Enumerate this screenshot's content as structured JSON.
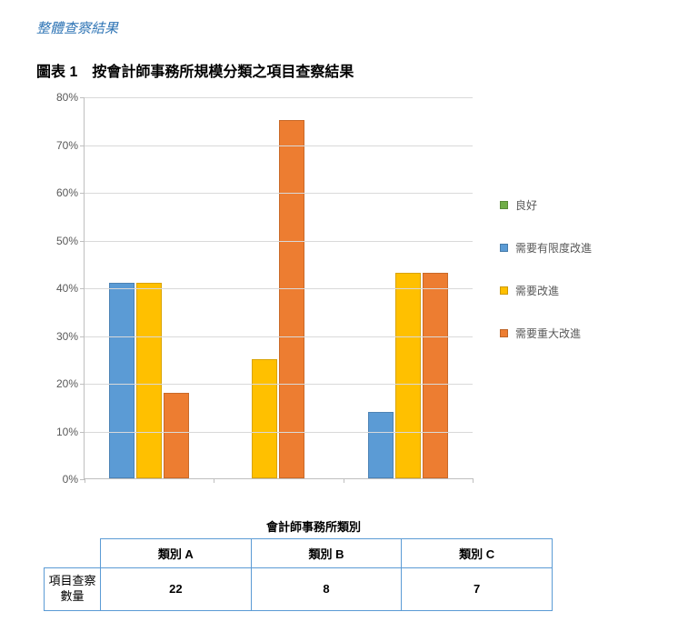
{
  "section_title": "整體查察結果",
  "chart_title": "圖表 1　按會計師事務所規模分類之項目查察結果",
  "chart": {
    "type": "bar",
    "ylim": [
      0,
      80
    ],
    "ytick_step": 10,
    "ytick_format_suffix": "%",
    "grid_color": "#d9d9d9",
    "axis_color": "#bfbfbf",
    "background_color": "#ffffff",
    "label_color": "#595959",
    "label_fontsize": 12,
    "categories": [
      "類別 A",
      "類別 B",
      "類別 C"
    ],
    "series": [
      {
        "name": "良好",
        "color": "#70ad47",
        "values": [
          0,
          0,
          0
        ]
      },
      {
        "name": "需要有限度改進",
        "color": "#5b9bd5",
        "values": [
          41,
          0,
          14
        ]
      },
      {
        "name": "需要改進",
        "color": "#ffc000",
        "values": [
          41,
          25,
          43
        ]
      },
      {
        "name": "需要重大改進",
        "color": "#ed7d31",
        "values": [
          18,
          75,
          43
        ]
      }
    ]
  },
  "x_axis_title": "會計師事務所類別",
  "table": {
    "border_color": "#5b9bd5",
    "row_header": "項目查察數量",
    "columns": [
      "類別 A",
      "類別 B",
      "類別 C"
    ],
    "values": [
      22,
      8,
      7
    ]
  }
}
